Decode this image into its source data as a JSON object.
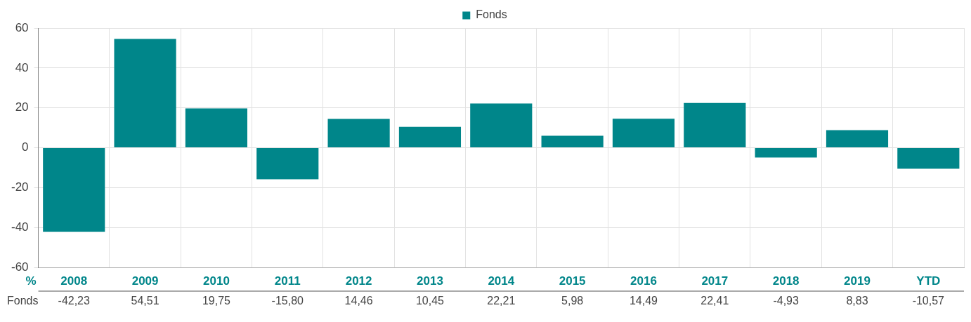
{
  "chart_data": {
    "type": "bar",
    "ylabel": "%",
    "categories": [
      "2008",
      "2009",
      "2010",
      "2011",
      "2012",
      "2013",
      "2014",
      "2015",
      "2016",
      "2017",
      "2018",
      "2019",
      "YTD"
    ],
    "series": [
      {
        "name": "Fonds",
        "color": "#00868a",
        "values": [
          -42.23,
          54.51,
          19.75,
          -15.8,
          14.46,
          10.45,
          22.21,
          5.98,
          14.49,
          22.41,
          -4.93,
          8.83,
          -10.57
        ],
        "value_labels": [
          "-42,23",
          "54,51",
          "19,75",
          "-15,80",
          "14,46",
          "10,45",
          "22,21",
          "5,98",
          "14,49",
          "22,41",
          "-4,93",
          "8,83",
          "-10,57"
        ]
      }
    ],
    "ylim": [
      -60,
      60
    ],
    "yticks": [
      -60,
      -40,
      -20,
      0,
      20,
      40,
      60
    ],
    "grid": true,
    "legend": "top"
  }
}
